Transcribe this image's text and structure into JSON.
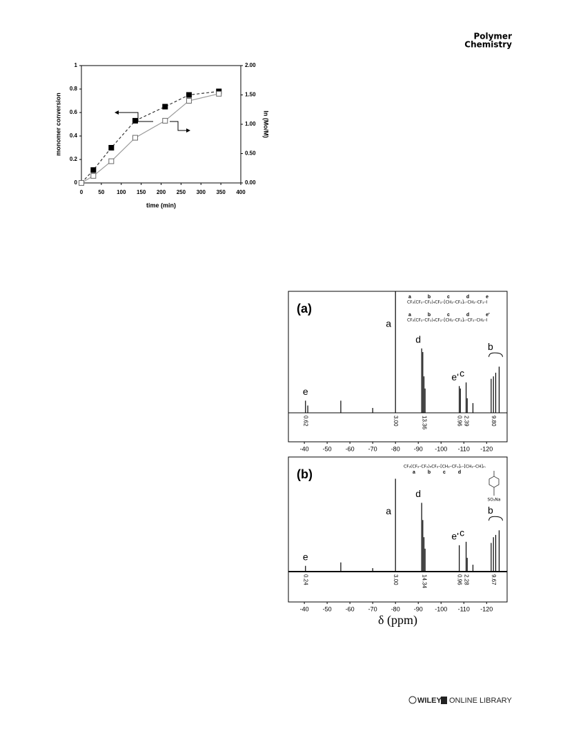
{
  "header": {
    "journal": [
      "Polymer",
      "Chemistry"
    ]
  },
  "footer": {
    "publisher": "WILEY",
    "library": "ONLINE LIBRARY"
  },
  "chart_data": [
    {
      "type": "scatter",
      "xlabel": "time (min)",
      "ylabel": "monomer conversion",
      "y2label": "ln (Mo/M)",
      "xlim": [
        0,
        400
      ],
      "xticks": [
        0,
        50,
        100,
        150,
        200,
        250,
        300,
        350,
        400
      ],
      "ylim": [
        0,
        1
      ],
      "yticks": [
        0,
        0.2,
        0.4,
        0.6,
        0.8,
        1
      ],
      "y2lim": [
        0,
        2
      ],
      "y2ticks": [
        {
          "value": 0,
          "label": "0.00"
        },
        {
          "value": 0.5,
          "label": "0.50"
        },
        {
          "value": 1,
          "label": "1.00"
        },
        {
          "value": 1.5,
          "label": "1.50"
        },
        {
          "value": 2,
          "label": "2.00"
        }
      ],
      "series": [
        {
          "color": "#000000",
          "marker": "filled",
          "line": "dashed",
          "x": [
            0,
            30,
            75,
            135,
            210,
            270,
            345
          ],
          "values": [
            0,
            0.11,
            0.3,
            0.53,
            0.65,
            0.75,
            0.78
          ]
        },
        {
          "color": "#000000",
          "marker": "open",
          "line": "solid",
          "axis": "y2",
          "x": [
            0,
            30,
            75,
            135,
            210,
            270,
            345
          ],
          "values": [
            0,
            0.12,
            0.37,
            0.77,
            1.06,
            1.4,
            1.52
          ]
        }
      ]
    },
    {
      "type": "nmr",
      "xlabel": "δ (ppm)",
      "xlim": [
        -33,
        -129
      ],
      "xticks": [
        -40,
        -50,
        -60,
        -70,
        -80,
        -90,
        -100,
        -110,
        -120
      ],
      "spectra": [
        {
          "panel": "(a)",
          "structures": [
            "CF₃(CF₂–CF₂)₄CF₂–[CH₂–CF₂]ₙ–CH₂–CF₂–I",
            "CF₃(CF₂–CF₂)₄CF₂–[CH₂–CF₂]ₙ–CF₂–CH₂–I"
          ],
          "structure_letters": [
            "a b c d e",
            "a b c d e'"
          ],
          "peak_ppm": [
            -40.5,
            -41.5,
            -56,
            -70,
            -80,
            -91.5,
            -92,
            -92.5,
            -93,
            -108,
            -108.5,
            -111,
            -111.5,
            -114,
            -122,
            -123,
            -124,
            -125.5
          ],
          "peak_heights": [
            0.1,
            0.06,
            0.1,
            0.04,
            1.0,
            0.53,
            0.5,
            0.3,
            0.2,
            0.22,
            0.2,
            0.25,
            0.12,
            0.08,
            0.28,
            0.3,
            0.33,
            0.38
          ],
          "peak_labels": [
            {
              "ppm": -40.5,
              "label": "e"
            },
            {
              "ppm": -80,
              "label": "a"
            },
            {
              "ppm": -91.8,
              "label": "d"
            },
            {
              "ppm": -108,
              "label": "e'"
            },
            {
              "ppm": -111,
              "label": "c"
            },
            {
              "ppm": -123.5,
              "label": "b"
            }
          ],
          "integrals": [
            {
              "ppm": -40.5,
              "label": "0.62"
            },
            {
              "ppm": -80,
              "label": "3.00"
            },
            {
              "ppm": -92.5,
              "label": "13.36"
            },
            {
              "ppm": -108,
              "label": "0.96"
            },
            {
              "ppm": -111,
              "label": "2.39"
            },
            {
              "ppm": -123,
              "label": "9.80"
            }
          ]
        },
        {
          "panel": "(b)",
          "structures": [
            "CF₃(CF₂–CF₂)₄CF₂–[CH₂–CF₂]ₙ–[CH₂–CH]ₘ",
            "SO₃Na"
          ],
          "structure_letters": [
            "a b c d"
          ],
          "peak_ppm": [
            -40.5,
            -56,
            -70,
            -80,
            -91.5,
            -92,
            -92.5,
            -93,
            -108,
            -111,
            -111.5,
            -114,
            -122,
            -123,
            -124,
            -125.5
          ],
          "peak_heights": [
            0.05,
            0.08,
            0.03,
            0.81,
            0.6,
            0.45,
            0.3,
            0.2,
            0.23,
            0.26,
            0.12,
            0.06,
            0.25,
            0.3,
            0.32,
            0.36
          ],
          "peak_labels": [
            {
              "ppm": -40.5,
              "label": "e"
            },
            {
              "ppm": -80,
              "label": "a"
            },
            {
              "ppm": -91.8,
              "label": "d"
            },
            {
              "ppm": -108,
              "label": "e'"
            },
            {
              "ppm": -111,
              "label": "c"
            },
            {
              "ppm": -123.5,
              "label": "b"
            }
          ],
          "integrals": [
            {
              "ppm": -40.5,
              "label": "0.24"
            },
            {
              "ppm": -80,
              "label": "3.00"
            },
            {
              "ppm": -92.5,
              "label": "14.34"
            },
            {
              "ppm": -108,
              "label": "0.96"
            },
            {
              "ppm": -111,
              "label": "2.28"
            },
            {
              "ppm": -123,
              "label": "9.67"
            }
          ]
        }
      ]
    }
  ]
}
